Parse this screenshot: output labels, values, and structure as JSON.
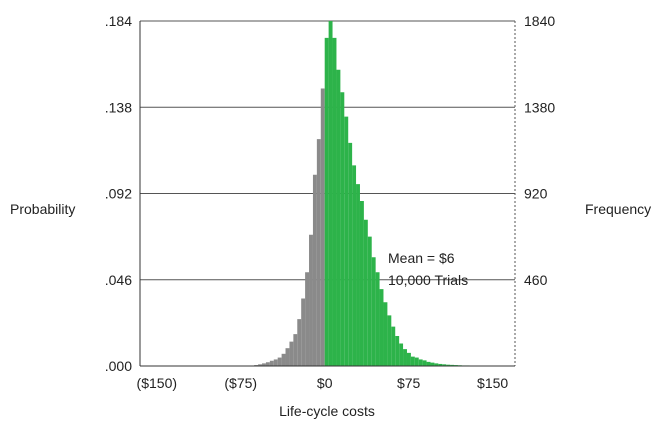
{
  "chart_data": {
    "type": "bar",
    "xlabel": "Life-cycle costs",
    "ylabel_left": "Probability",
    "ylabel_right": "Frequency",
    "x_range": [
      -165,
      170
    ],
    "x_ticks": [
      -150,
      -75,
      0,
      75,
      150
    ],
    "x_tick_labels": [
      "($150)",
      "($75)",
      "$0",
      "$75",
      "$150"
    ],
    "left_ylim": [
      0,
      0.184
    ],
    "left_ticks": [
      ".000",
      ".046",
      ".092",
      ".138",
      ".184"
    ],
    "right_ylim": [
      0,
      1840
    ],
    "right_ticks": [
      "",
      "460",
      "920",
      "1380",
      "1840"
    ],
    "grid": "horizontal",
    "bin_width": 3.5,
    "colors": {
      "negative": "#8a8a8a",
      "positive": "#2db34a",
      "grid": "#555555"
    },
    "series": [
      {
        "bins": [
          [
            -63,
            0.0005
          ],
          [
            -59.5,
            0.0009
          ],
          [
            -56,
            0.0014
          ],
          [
            -52.5,
            0.002
          ],
          [
            -49,
            0.0028
          ],
          [
            -45.5,
            0.0035
          ],
          [
            -42,
            0.0045
          ],
          [
            -38.5,
            0.0065
          ],
          [
            -35,
            0.0095
          ],
          [
            -31.5,
            0.013
          ],
          [
            -28,
            0.017
          ],
          [
            -24.5,
            0.025
          ],
          [
            -21,
            0.036
          ],
          [
            -17.5,
            0.05
          ],
          [
            -14,
            0.07
          ],
          [
            -10.5,
            0.102
          ],
          [
            -7,
            0.121
          ],
          [
            -3.5,
            0.148
          ],
          [
            0,
            0.175
          ],
          [
            3.5,
            0.184
          ],
          [
            7,
            0.175
          ],
          [
            10.5,
            0.158
          ],
          [
            14,
            0.146
          ],
          [
            17.5,
            0.133
          ],
          [
            21,
            0.119
          ],
          [
            24.5,
            0.107
          ],
          [
            28,
            0.097
          ],
          [
            31.5,
            0.088
          ],
          [
            35,
            0.078
          ],
          [
            38.5,
            0.069
          ],
          [
            42,
            0.058
          ],
          [
            45.5,
            0.05
          ],
          [
            49,
            0.041
          ],
          [
            52.5,
            0.034
          ],
          [
            56,
            0.027
          ],
          [
            59.5,
            0.021
          ],
          [
            63,
            0.016
          ],
          [
            66.5,
            0.012
          ],
          [
            70,
            0.009
          ],
          [
            73.5,
            0.007
          ],
          [
            77,
            0.005
          ],
          [
            80.5,
            0.0045
          ],
          [
            84,
            0.0035
          ],
          [
            87.5,
            0.003
          ],
          [
            91,
            0.0022
          ],
          [
            94.5,
            0.0018
          ],
          [
            98,
            0.0014
          ],
          [
            101.5,
            0.0011
          ],
          [
            105,
            0.0009
          ],
          [
            108.5,
            0.0007
          ],
          [
            112,
            0.0006
          ],
          [
            115.5,
            0.0005
          ],
          [
            119,
            0.0004
          ],
          [
            122.5,
            0.0003
          ],
          [
            126,
            0.0003
          ],
          [
            129.5,
            0.0002
          ],
          [
            133,
            0.0002
          ],
          [
            136.5,
            0.0002
          ],
          [
            140,
            0.0001
          ],
          [
            143.5,
            0.0001
          ]
        ]
      }
    ],
    "annotation": {
      "mean": "Mean = $6",
      "trials": "10,000 Trials"
    }
  }
}
